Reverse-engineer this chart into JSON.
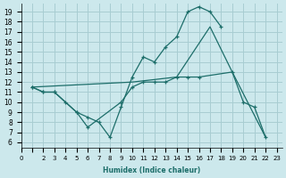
{
  "xlabel": "Humidex (Indice chaleur)",
  "bg_color": "#cce8ec",
  "grid_color": "#a8cdd2",
  "line_color": "#1d6e6a",
  "xlim": [
    0,
    23.5
  ],
  "ylim": [
    5.5,
    19.8
  ],
  "xticks": [
    0,
    2,
    3,
    4,
    5,
    6,
    7,
    8,
    9,
    10,
    11,
    12,
    13,
    14,
    15,
    16,
    17,
    18,
    19,
    20,
    21,
    22,
    23
  ],
  "yticks": [
    6,
    7,
    8,
    9,
    10,
    11,
    12,
    13,
    14,
    15,
    16,
    17,
    18,
    19
  ],
  "line1_x": [
    1,
    2,
    3,
    5,
    6,
    7,
    8,
    9,
    10,
    11,
    12,
    13,
    14,
    15,
    16,
    17,
    18
  ],
  "line1_y": [
    11.5,
    11.0,
    11.0,
    9.0,
    8.5,
    8.0,
    6.5,
    9.5,
    12.5,
    14.5,
    14.0,
    15.5,
    16.5,
    19.0,
    19.5,
    19.0,
    17.5
  ],
  "line2_x": [
    1,
    2,
    3,
    4,
    5,
    6,
    9,
    10,
    11,
    12,
    13,
    14,
    15,
    16,
    19,
    20,
    21,
    22
  ],
  "line2_y": [
    11.5,
    11.0,
    11.0,
    10.0,
    9.0,
    7.5,
    10.0,
    11.5,
    12.0,
    12.0,
    12.0,
    12.5,
    12.5,
    12.5,
    13.0,
    10.0,
    9.5,
    6.5
  ],
  "line3_x": [
    1,
    10,
    14,
    17,
    19,
    22
  ],
  "line3_y": [
    11.5,
    12.0,
    12.5,
    17.5,
    13.0,
    6.5
  ]
}
